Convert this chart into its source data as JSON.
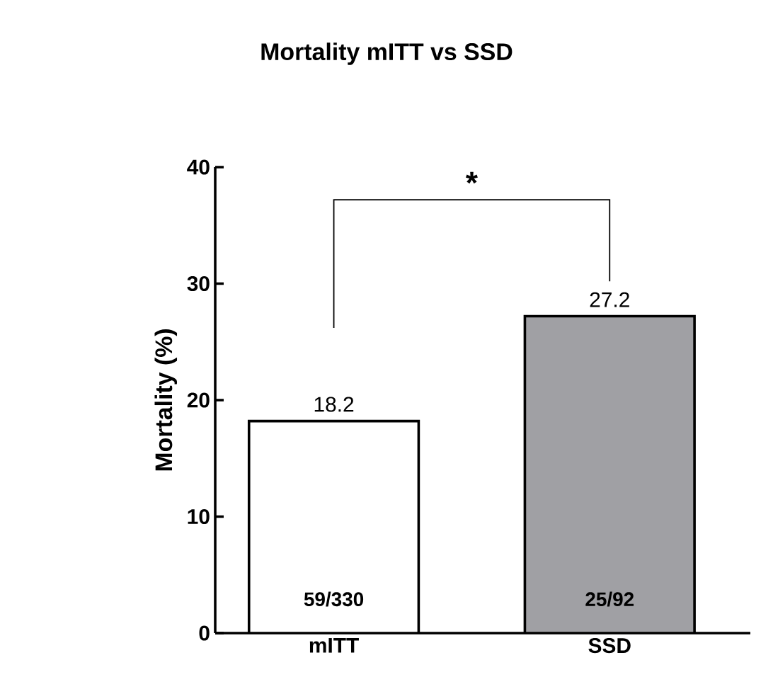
{
  "chart_data": {
    "type": "bar",
    "title": "Mortality mITT vs SSD",
    "ylabel": "Mortality (%)",
    "categories": [
      "mITT",
      "SSD"
    ],
    "values": [
      18.2,
      27.2
    ],
    "colors": [
      "#ffffff",
      "#a0a0a4"
    ],
    "ylim": [
      0,
      40
    ],
    "yticks": [
      0,
      10,
      20,
      30,
      40
    ],
    "data_labels": true,
    "annotations": [
      "*",
      "59/330",
      "25/92"
    ],
    "grid": false
  }
}
